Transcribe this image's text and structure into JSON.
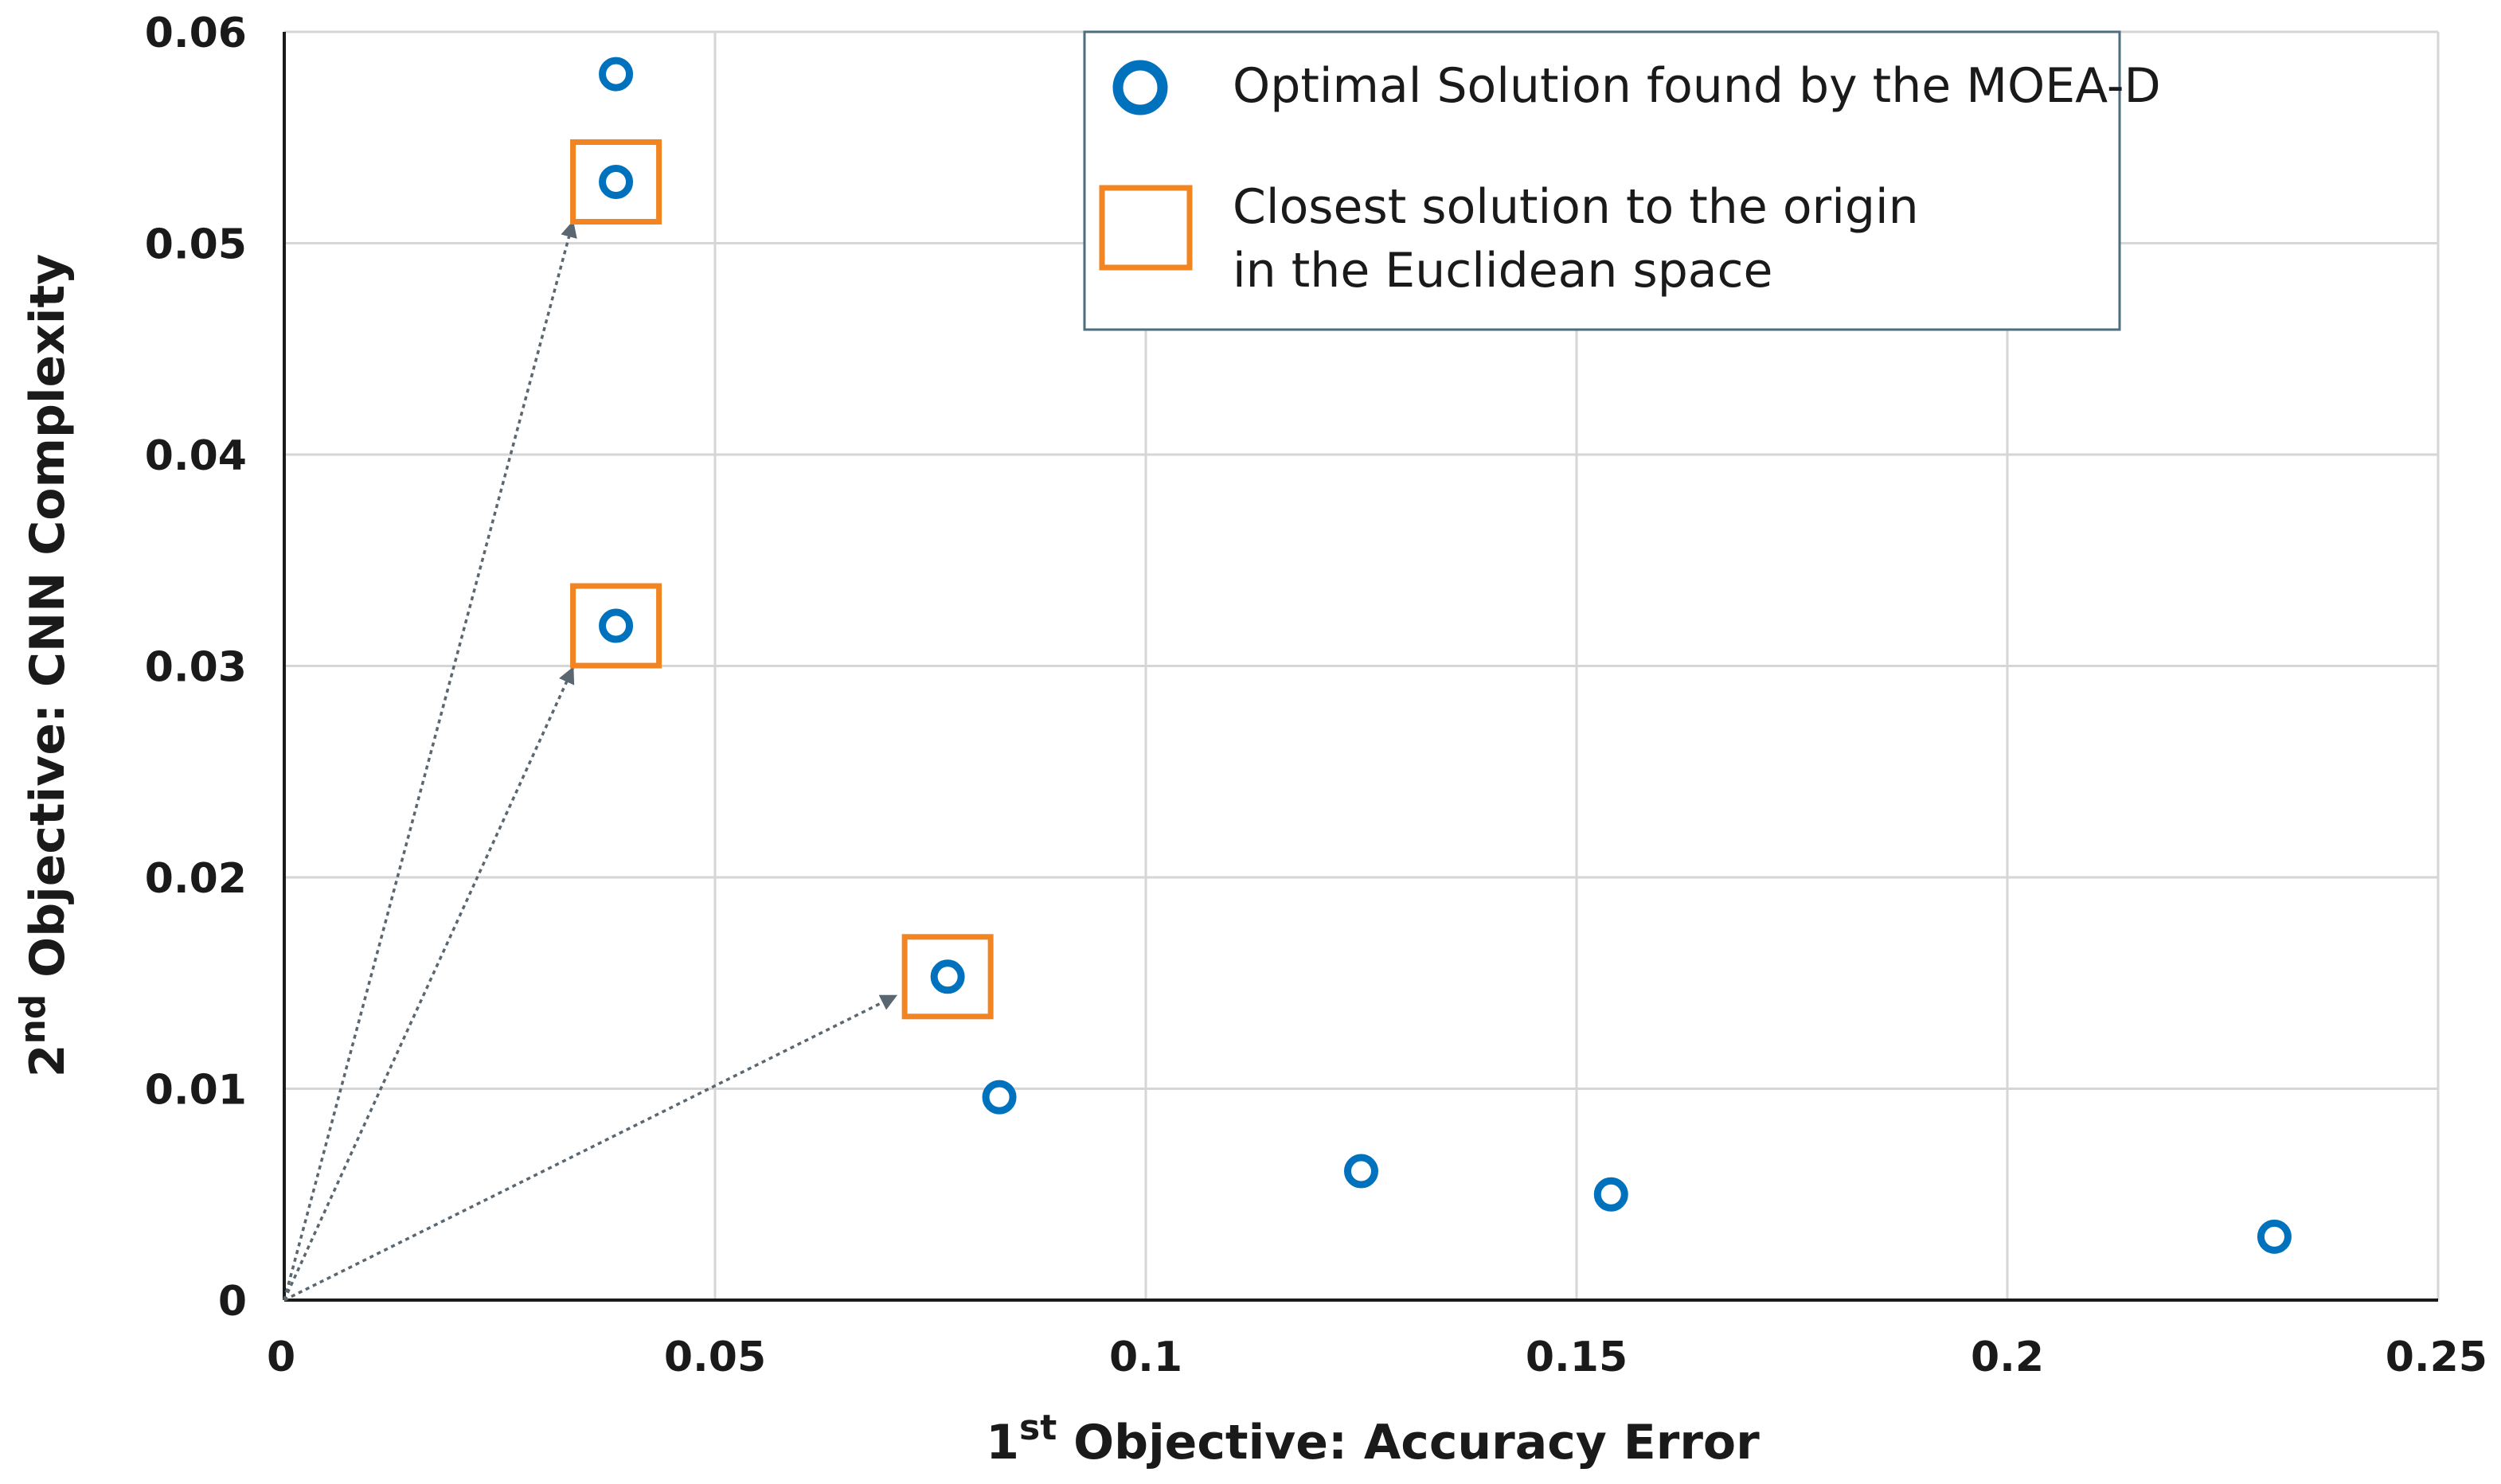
{
  "chart_data": {
    "type": "scatter",
    "x_axis": {
      "label_prefix": "1",
      "label_sup": "st",
      "label_rest": " Objective: Accuracy Error",
      "xlim": [
        0,
        0.25
      ],
      "ticks": [
        0,
        0.05,
        0.1,
        0.15,
        0.2,
        0.25
      ],
      "tick_labels": [
        "0",
        "0.05",
        "0.1",
        "0.15",
        "0.2",
        "0.25"
      ]
    },
    "y_axis": {
      "label_prefix": "2",
      "label_sup": "nd",
      "label_rest": " Objective: CNN Complexity",
      "ylim": [
        0,
        0.06
      ],
      "ticks": [
        0,
        0.01,
        0.02,
        0.03,
        0.04,
        0.05,
        0.06
      ],
      "tick_labels": [
        "0",
        "0.01",
        "0.02",
        "0.03",
        "0.04",
        "0.05",
        "0.06"
      ]
    },
    "grid": true,
    "legend_position": "top-right",
    "series": [
      {
        "name": "Optimal Solution found by the MOEA-D",
        "marker": "circle",
        "color": "#0072BD",
        "points": [
          {
            "x": 0.0385,
            "y": 0.058
          },
          {
            "x": 0.0385,
            "y": 0.0529
          },
          {
            "x": 0.0385,
            "y": 0.0319
          },
          {
            "x": 0.077,
            "y": 0.0153
          },
          {
            "x": 0.083,
            "y": 0.0096
          },
          {
            "x": 0.125,
            "y": 0.0061
          },
          {
            "x": 0.154,
            "y": 0.005
          },
          {
            "x": 0.231,
            "y": 0.003
          }
        ]
      },
      {
        "name_line1": "Closest solution to the origin",
        "name_line2": "in the Euclidean space",
        "marker": "square",
        "color": "#F28522",
        "points": [
          {
            "x": 0.0385,
            "y": 0.0529
          },
          {
            "x": 0.0385,
            "y": 0.0319
          },
          {
            "x": 0.077,
            "y": 0.0153
          }
        ]
      }
    ],
    "arrows": {
      "color": "#5a6770",
      "from": {
        "x": 0,
        "y": 0
      },
      "to": [
        {
          "x": 0.0335,
          "y": 0.051
        },
        {
          "x": 0.0335,
          "y": 0.0299
        },
        {
          "x": 0.071,
          "y": 0.0144
        }
      ]
    }
  }
}
